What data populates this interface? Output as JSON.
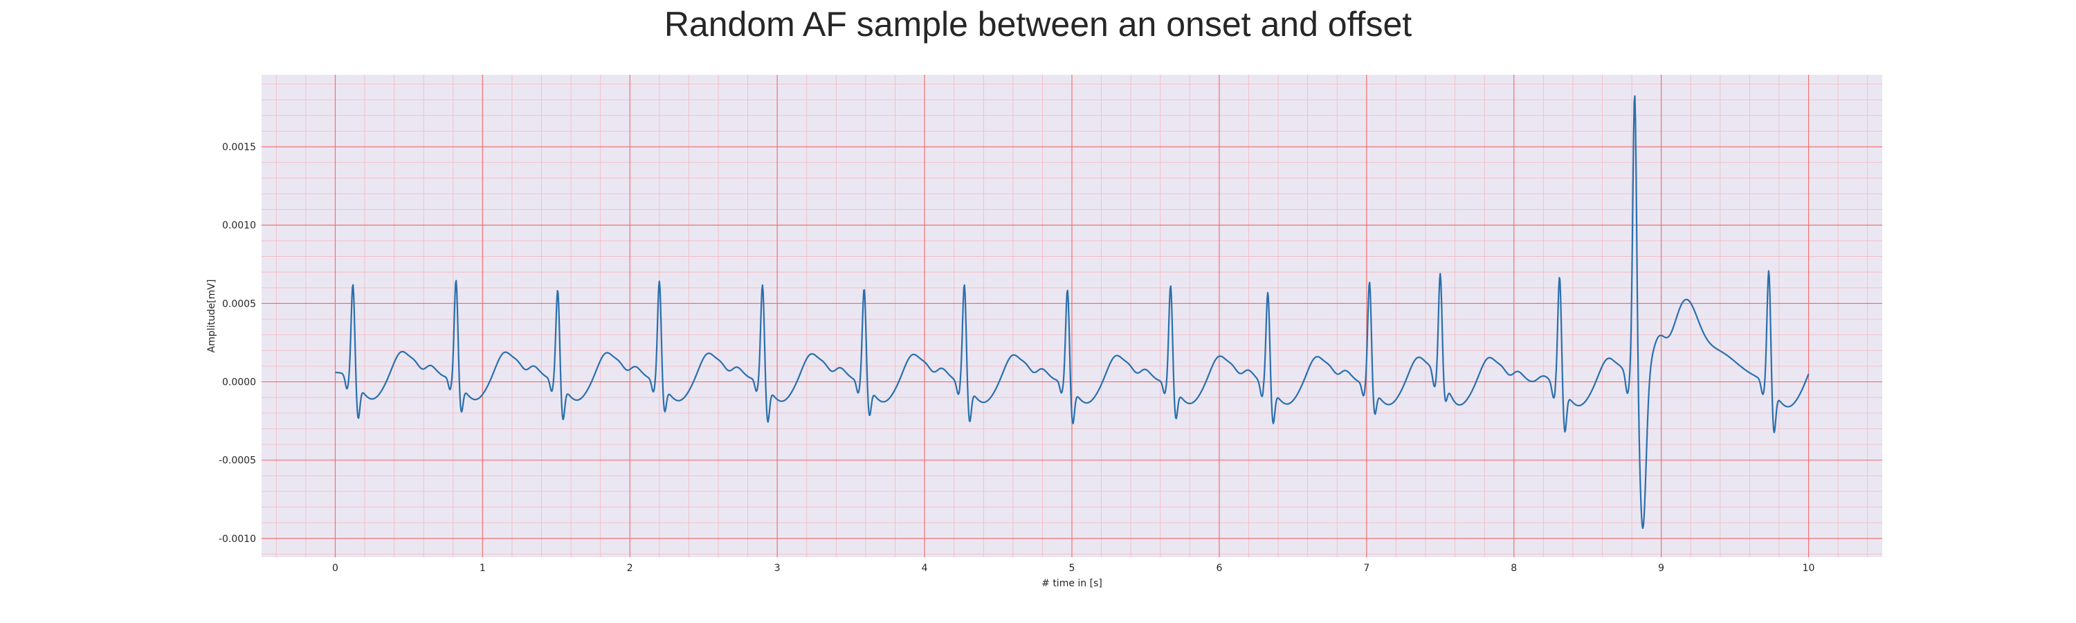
{
  "chart_data": {
    "type": "line",
    "title": "Random AF sample between an onset and offset",
    "xlabel": "# time in [s]",
    "ylabel": "Amplitude[mV]",
    "xlim": [
      -0.5,
      10.5
    ],
    "ylim": [
      -0.00112,
      0.00196
    ],
    "xticks": [
      0,
      1,
      2,
      3,
      4,
      5,
      6,
      7,
      8,
      9,
      10
    ],
    "xtick_labels": [
      "0",
      "1",
      "2",
      "3",
      "4",
      "5",
      "6",
      "7",
      "8",
      "9",
      "10"
    ],
    "yticks": [
      -0.001,
      -0.0005,
      0.0,
      0.0005,
      0.001,
      0.0015
    ],
    "ytick_labels": [
      "-0.0010",
      "-0.0005",
      "0.0000",
      "0.0005",
      "0.0010",
      "0.0015"
    ],
    "grid": true,
    "minor_grid": true,
    "legend": false,
    "colors": {
      "line": "#2a6fad",
      "background": "#eae7f2",
      "major_grid": "#f07070",
      "minor_grid": "#f4bcc4"
    },
    "series": [
      {
        "beats": [
          {
            "t": 0.12,
            "r": 0.00061,
            "s": -0.00024
          },
          {
            "t": 0.82,
            "r": 0.00064,
            "s": -0.00019
          },
          {
            "t": 1.51,
            "r": 0.00058,
            "s": -0.00024
          },
          {
            "t": 2.2,
            "r": 0.00064,
            "s": -0.00018
          },
          {
            "t": 2.9,
            "r": 0.00062,
            "s": -0.00025
          },
          {
            "t": 3.59,
            "r": 0.0006,
            "s": -0.0002
          },
          {
            "t": 4.27,
            "r": 0.00063,
            "s": -0.00024
          },
          {
            "t": 4.97,
            "r": 0.0006,
            "s": -0.00025
          },
          {
            "t": 5.67,
            "r": 0.00063,
            "s": -0.00021
          },
          {
            "t": 6.33,
            "r": 0.00059,
            "s": -0.00024
          },
          {
            "t": 7.02,
            "r": 0.00066,
            "s": -0.00017
          },
          {
            "t": 7.5,
            "r": 0.00069,
            "s": -0.00012
          },
          {
            "t": 8.31,
            "r": 0.0007,
            "s": -0.00029
          },
          {
            "t": 8.82,
            "r": 0.00182,
            "s": -0.00098
          },
          {
            "t": 9.73,
            "r": 0.00074,
            "s": -0.00029
          }
        ],
        "start": [
          0.0,
          6e-05
        ],
        "end": [
          10.0,
          5e-05
        ]
      }
    ]
  }
}
